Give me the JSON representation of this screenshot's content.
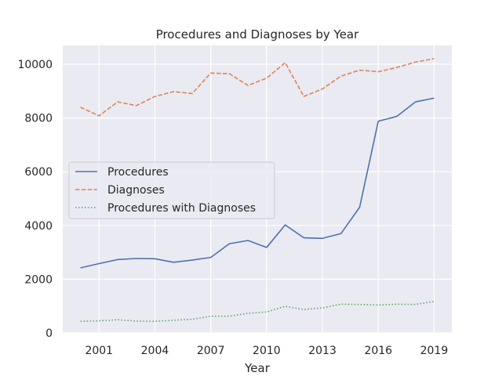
{
  "chart_data": {
    "type": "line",
    "title": "Procedures and Diagnoses by Year",
    "xlabel": "Year",
    "ylabel": "",
    "xlim": [
      1999.05,
      2019.95
    ],
    "ylim": [
      0,
      10700
    ],
    "xticks": [
      2001,
      2004,
      2007,
      2010,
      2013,
      2016,
      2019
    ],
    "yticks": [
      0,
      2000,
      4000,
      6000,
      8000,
      10000
    ],
    "grid": true,
    "legend_position": "center-left",
    "x": [
      2000,
      2001,
      2002,
      2003,
      2004,
      2005,
      2006,
      2007,
      2008,
      2009,
      2010,
      2011,
      2012,
      2013,
      2014,
      2015,
      2016,
      2017,
      2018,
      2019
    ],
    "series": [
      {
        "name": "Procedures",
        "color": "#4c72b0",
        "dash": "solid",
        "values": [
          2420,
          2580,
          2730,
          2770,
          2760,
          2630,
          2710,
          2810,
          3320,
          3440,
          3180,
          4020,
          3540,
          3520,
          3700,
          4680,
          7880,
          8060,
          8600,
          8740
        ]
      },
      {
        "name": "Diagnoses",
        "color": "#dd8452",
        "dash": "dashed",
        "values": [
          8400,
          8080,
          8600,
          8460,
          8800,
          8980,
          8910,
          9670,
          9650,
          9210,
          9480,
          10060,
          8800,
          9080,
          9560,
          9780,
          9720,
          9880,
          10080,
          10210
        ]
      },
      {
        "name": "Procedures with Diagnoses",
        "color": "#55a868",
        "dash": "dotted",
        "values": [
          430,
          450,
          490,
          440,
          430,
          470,
          510,
          620,
          620,
          730,
          780,
          990,
          870,
          930,
          1070,
          1060,
          1040,
          1070,
          1060,
          1170
        ]
      }
    ]
  }
}
